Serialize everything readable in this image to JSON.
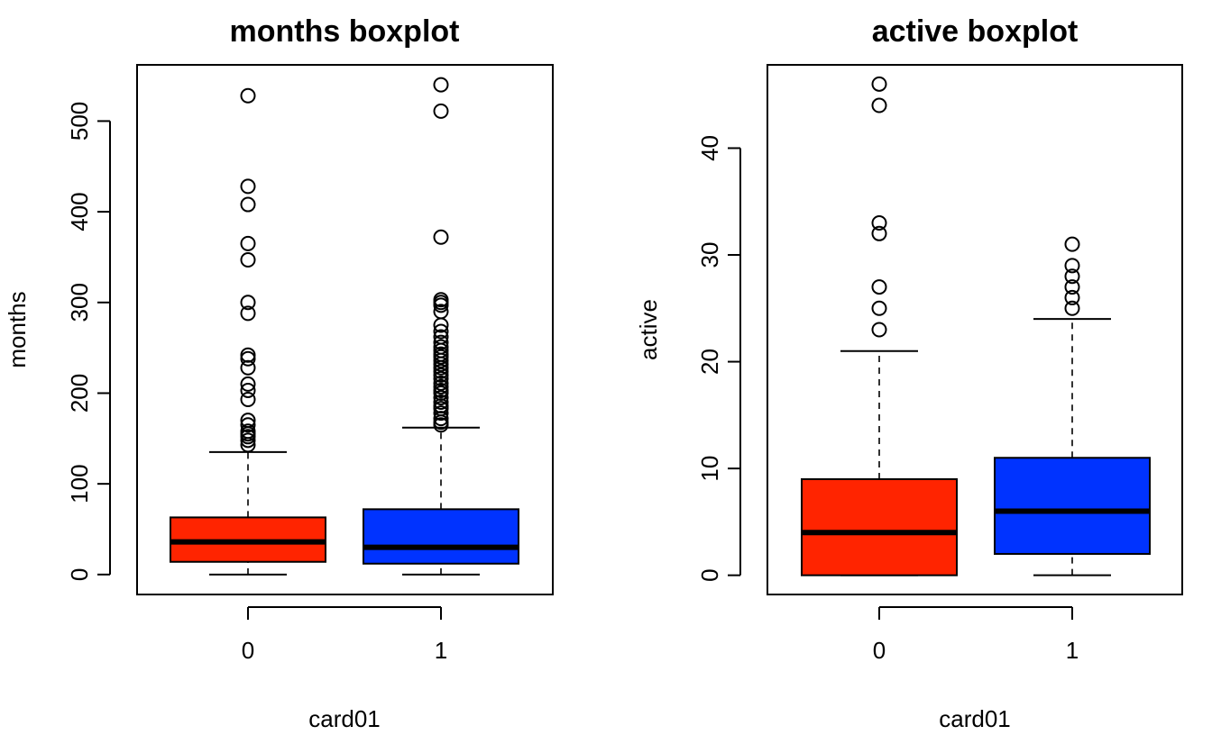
{
  "chart_data": [
    {
      "type": "box",
      "title": "months boxplot",
      "xlabel": "card01",
      "ylabel": "months",
      "ylim": [
        -22,
        562
      ],
      "yticks": [
        0,
        100,
        200,
        300,
        400,
        500
      ],
      "categories": [
        "0",
        "1"
      ],
      "boxes": [
        {
          "category": "0",
          "color": "#ff2400",
          "whisker_low": 0,
          "q1": 14,
          "median": 36,
          "q3": 63,
          "whisker_high": 135,
          "outliers": [
            143,
            148,
            152,
            155,
            158,
            165,
            170,
            193,
            203,
            210,
            228,
            238,
            242,
            288,
            300,
            347,
            365,
            408,
            428,
            528
          ]
        },
        {
          "category": "1",
          "color": "#0033ff",
          "whisker_low": 0,
          "q1": 12,
          "median": 30,
          "q3": 72,
          "whisker_high": 162,
          "outliers": [
            165,
            168,
            172,
            178,
            183,
            186,
            190,
            195,
            200,
            203,
            207,
            211,
            216,
            220,
            224,
            228,
            232,
            236,
            240,
            243,
            247,
            251,
            256,
            262,
            268,
            275,
            290,
            297,
            300,
            303,
            372,
            511,
            540
          ]
        }
      ]
    },
    {
      "type": "box",
      "title": "active boxplot",
      "xlabel": "card01",
      "ylabel": "active",
      "ylim": [
        -1.8,
        47.8
      ],
      "yticks": [
        0,
        10,
        20,
        30,
        40
      ],
      "categories": [
        "0",
        "1"
      ],
      "boxes": [
        {
          "category": "0",
          "color": "#ff2400",
          "whisker_low": 0,
          "q1": 0,
          "median": 4,
          "q3": 9,
          "whisker_high": 21,
          "outliers": [
            23,
            25,
            27,
            32,
            33,
            44,
            46
          ]
        },
        {
          "category": "1",
          "color": "#0033ff",
          "whisker_low": 0,
          "q1": 2,
          "median": 6,
          "q3": 11,
          "whisker_high": 24,
          "outliers": [
            25,
            26,
            27,
            28,
            29,
            31
          ]
        }
      ]
    }
  ]
}
